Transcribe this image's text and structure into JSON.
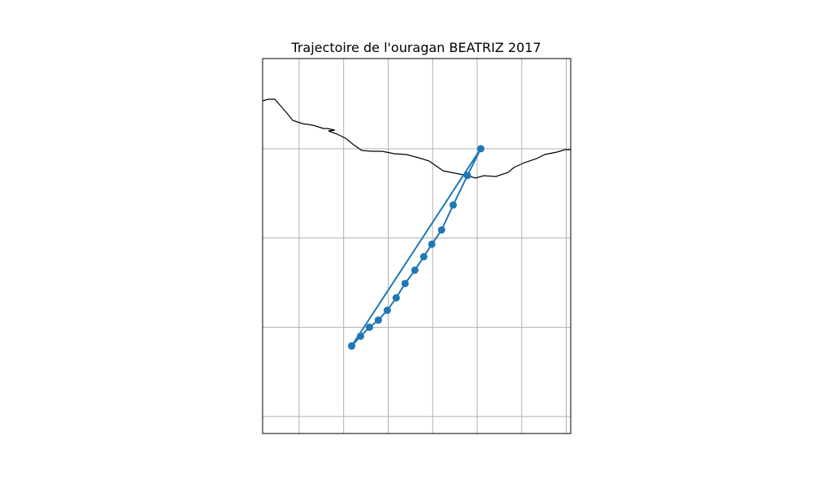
{
  "chart_data": {
    "type": "line",
    "title": "Trajectoire de l'ouragan BEATRIZ 2017",
    "x": [
      -97.91,
      -96.46,
      -96.61,
      -96.77,
      -96.9,
      -97.01,
      -97.1,
      -97.2,
      -97.31,
      -97.41,
      -97.51,
      -97.61,
      -97.71,
      -97.81,
      -97.91
    ],
    "series": [
      {
        "color": "#1f77b4",
        "values": [
          13.79,
          16.0,
          15.7,
          15.37,
          15.09,
          14.93,
          14.79,
          14.64,
          14.49,
          14.33,
          14.19,
          14.08,
          14.0,
          13.9,
          13.79
        ]
      }
    ],
    "xlim": [
      -98.91,
      -95.45
    ],
    "ylim": [
      12.81,
      17.01
    ],
    "xticks": [
      -98.5,
      -98,
      -97.5,
      -97,
      -96.5,
      -96,
      -95.5
    ],
    "yticks": [
      13,
      14,
      15,
      16
    ],
    "grid": true,
    "markers": true
  }
}
